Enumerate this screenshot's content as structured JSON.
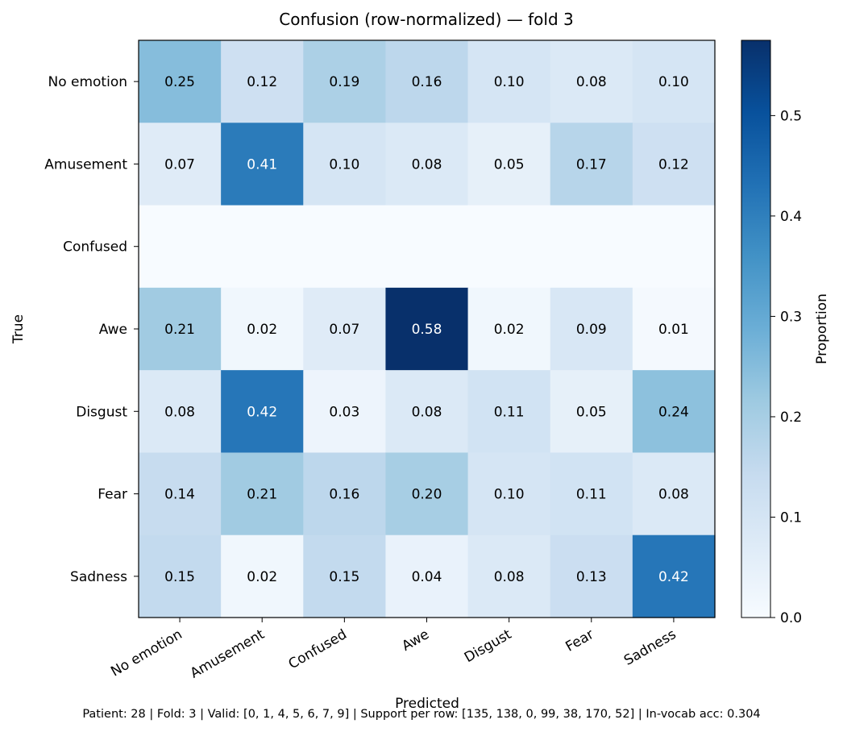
{
  "chart_data": {
    "type": "heatmap",
    "title": "Confusion (row-normalized) — fold 3",
    "xlabel": "Predicted",
    "ylabel": "True",
    "x_categories": [
      "No emotion",
      "Amusement",
      "Confused",
      "Awe",
      "Disgust",
      "Fear",
      "Sadness"
    ],
    "y_categories": [
      "No emotion",
      "Amusement",
      "Confused",
      "Awe",
      "Disgust",
      "Fear",
      "Sadness"
    ],
    "values": [
      [
        0.25,
        0.12,
        0.19,
        0.16,
        0.1,
        0.08,
        0.1
      ],
      [
        0.07,
        0.41,
        0.1,
        0.08,
        0.05,
        0.17,
        0.12
      ],
      [
        null,
        null,
        null,
        null,
        null,
        null,
        null
      ],
      [
        0.21,
        0.02,
        0.07,
        0.58,
        0.02,
        0.09,
        0.01
      ],
      [
        0.08,
        0.42,
        0.03,
        0.08,
        0.11,
        0.05,
        0.24
      ],
      [
        0.14,
        0.21,
        0.16,
        0.2,
        0.1,
        0.11,
        0.08
      ],
      [
        0.15,
        0.02,
        0.15,
        0.04,
        0.08,
        0.13,
        0.42
      ]
    ],
    "colorbar": {
      "label": "Proportion",
      "range": [
        0.0,
        0.575
      ],
      "ticks": [
        0.0,
        0.1,
        0.2,
        0.3,
        0.4,
        0.5
      ],
      "tick_labels": [
        "0.0",
        "0.1",
        "0.2",
        "0.3",
        "0.4",
        "0.5"
      ],
      "colormap": "Blues"
    },
    "grid": false,
    "legend": "none"
  },
  "footer": "Patient: 28 | Fold: 3 | Valid: [0, 1, 4, 5, 6, 7, 9] | Support per row: [135, 138, 0, 99, 38, 170, 52] | In-vocab acc: 0.304"
}
